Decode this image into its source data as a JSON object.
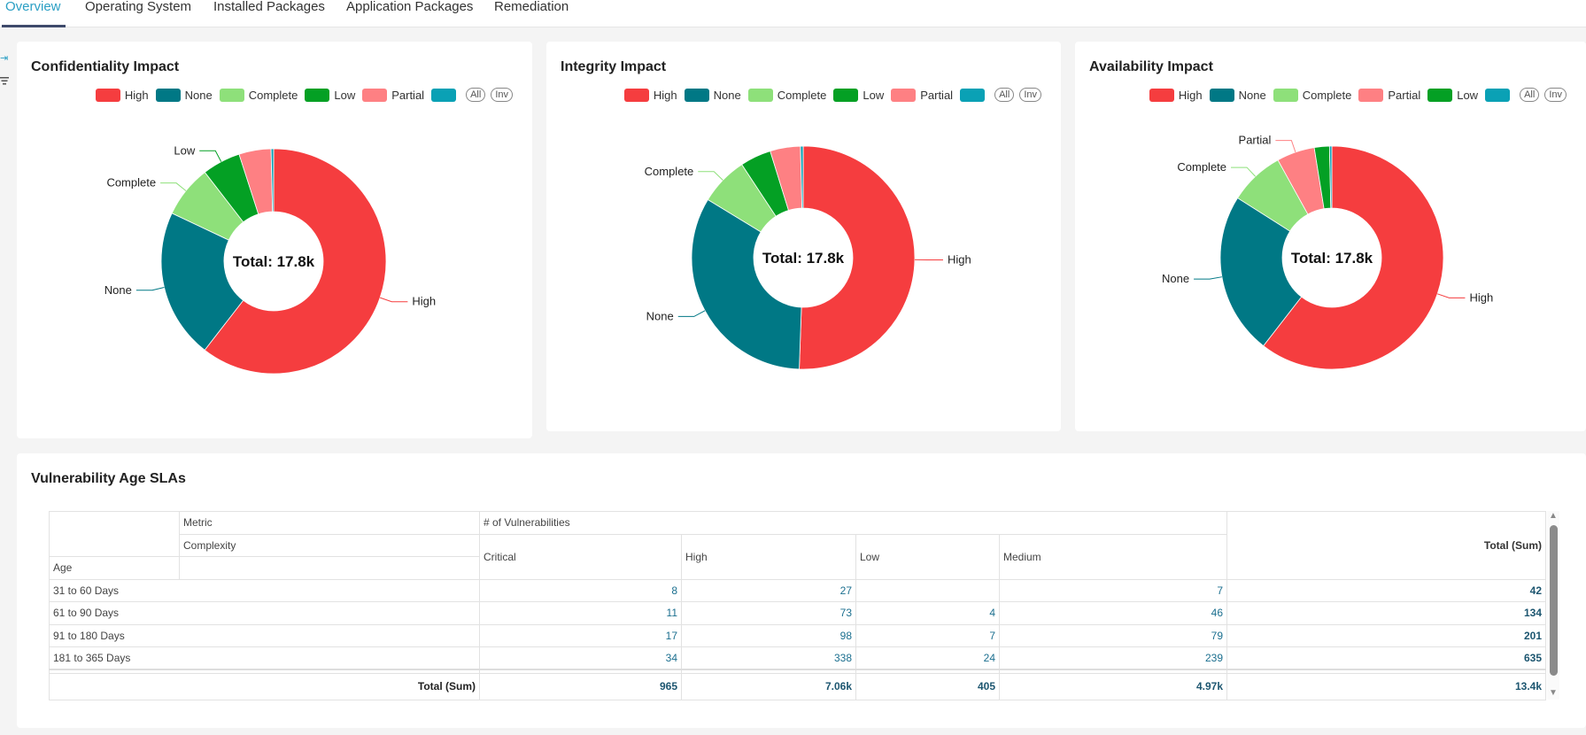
{
  "tabs": [
    {
      "label": "Overview",
      "active": true
    },
    {
      "label": "Operating System"
    },
    {
      "label": "Installed Packages"
    },
    {
      "label": "Application Packages"
    },
    {
      "label": "Remediation"
    }
  ],
  "sidebar_icons": [
    "expand-panel-icon",
    "filter-icon"
  ],
  "legend_buttons": {
    "all": "All",
    "inv": "Inv"
  },
  "colors": {
    "High": "#f53d3f",
    "None": "#007885",
    "Complete": "#8ee07a",
    "Low": "#04a024",
    "Partial": "#fe8083",
    "Other": "#0aa1b5",
    "accent": "#2a9fc4"
  },
  "chart_data": [
    {
      "type": "pie",
      "donut": true,
      "title": "Confidentiality Impact",
      "center_label": "Total: 17.8k",
      "slices": [
        {
          "name": "High",
          "value": 10770
        },
        {
          "name": "None",
          "value": 3830
        },
        {
          "name": "Complete",
          "value": 1335
        },
        {
          "name": "Low",
          "value": 980
        },
        {
          "name": "Partial",
          "value": 820
        },
        {
          "name": "",
          "value": 65
        }
      ],
      "labeled_slices": [
        "High",
        "None",
        "Complete",
        "Low"
      ],
      "legend_placement": "top-right"
    },
    {
      "type": "pie",
      "donut": true,
      "title": "Integrity Impact",
      "center_label": "Total: 17.8k",
      "slices": [
        {
          "name": "High",
          "value": 9000
        },
        {
          "name": "None",
          "value": 5900
        },
        {
          "name": "Complete",
          "value": 1250
        },
        {
          "name": "Low",
          "value": 800
        },
        {
          "name": "Partial",
          "value": 780
        },
        {
          "name": "",
          "value": 70
        }
      ],
      "labeled_slices": [
        "High",
        "None",
        "Complete"
      ],
      "legend_placement": "top-right"
    },
    {
      "type": "pie",
      "donut": true,
      "title": "Availability Impact",
      "center_label": "Total: 17.8k",
      "slices": [
        {
          "name": "High",
          "value": 10770
        },
        {
          "name": "None",
          "value": 4180
        },
        {
          "name": "Complete",
          "value": 1420
        },
        {
          "name": "Partial",
          "value": 980
        },
        {
          "name": "Low",
          "value": 390
        },
        {
          "name": "",
          "value": 60
        }
      ],
      "labeled_slices": [
        "High",
        "None",
        "Complete",
        "Partial"
      ],
      "legend_placement": "top-right"
    }
  ],
  "sla": {
    "title": "Vulnerability Age SLAs",
    "header": {
      "metric": "Metric",
      "measure": "# of Vulnerabilities",
      "complexity": "Complexity",
      "age": "Age",
      "total": "Total (Sum)",
      "columns": [
        "Critical",
        "High",
        "Low",
        "Medium"
      ]
    },
    "rows": [
      {
        "age": "31 to 60 Days",
        "values": [
          "8",
          "27",
          "",
          "7"
        ],
        "total": "42"
      },
      {
        "age": "61 to 90 Days",
        "values": [
          "11",
          "73",
          "4",
          "46"
        ],
        "total": "134"
      },
      {
        "age": "91 to 180 Days",
        "values": [
          "17",
          "98",
          "7",
          "79"
        ],
        "total": "201"
      },
      {
        "age": "181 to 365 Days",
        "values": [
          "34",
          "338",
          "24",
          "239"
        ],
        "total": "635"
      }
    ],
    "totals": {
      "label": "Total (Sum)",
      "values": [
        "965",
        "7.06k",
        "405",
        "4.97k"
      ],
      "total": "13.4k"
    }
  }
}
